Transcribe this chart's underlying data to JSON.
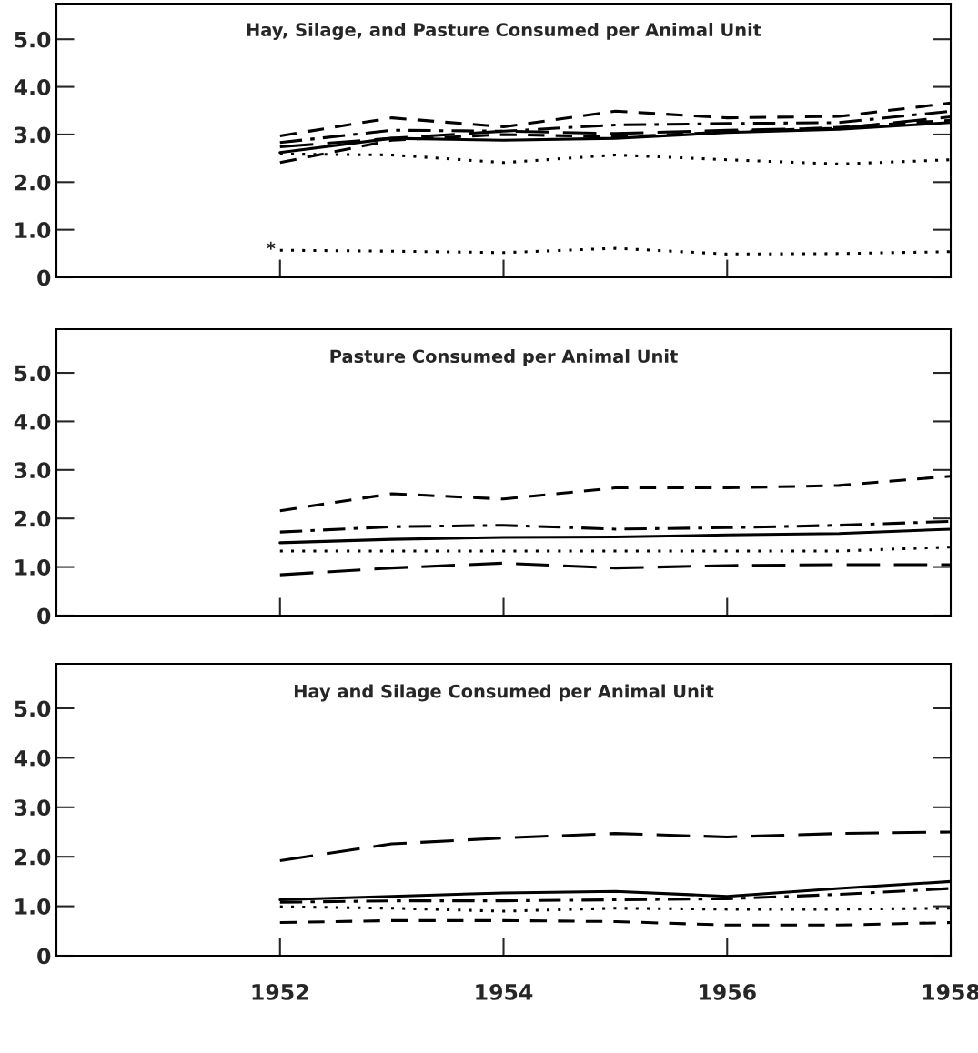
{
  "chart_data": [
    {
      "type": "line",
      "title": "Hay, Silage, and Pasture Consumed per Animal Unit",
      "x": [
        1952,
        1953,
        1954,
        1955,
        1956,
        1957,
        1958
      ],
      "xlim": [
        1950,
        1958
      ],
      "xticks": [
        {
          "value": 1952,
          "label": null
        },
        {
          "value": 1954,
          "label": null
        },
        {
          "value": 1956,
          "label": null
        }
      ],
      "ylim": [
        0,
        5.75
      ],
      "yticks": [
        0,
        {
          "value": 1,
          "label": "1.0"
        },
        {
          "value": 2,
          "label": "2.0"
        },
        {
          "value": 3,
          "label": "3.0"
        },
        {
          "value": 4,
          "label": "4.0"
        },
        {
          "value": 5,
          "label": "5.0"
        }
      ],
      "tick_labels": "y",
      "grid": false,
      "legend": false,
      "annotations": [
        "*"
      ],
      "series": [
        {
          "color": "#000000",
          "line_style": "dashed",
          "values": [
            2.97,
            3.35,
            3.16,
            3.49,
            3.35,
            3.38,
            3.66
          ]
        },
        {
          "color": "#000000",
          "line_style": "dashdot",
          "values": [
            2.83,
            3.09,
            3.07,
            3.2,
            3.23,
            3.25,
            3.49
          ]
        },
        {
          "color": "#000000",
          "line_style": "longdash",
          "values": [
            2.74,
            2.92,
            3.07,
            3.02,
            3.09,
            3.13,
            3.37
          ]
        },
        {
          "color": "#000000",
          "line_style": "solid",
          "values": [
            2.62,
            2.92,
            2.88,
            2.92,
            3.04,
            3.11,
            3.25
          ]
        },
        {
          "color": "#000000",
          "line_style": "dashed",
          "values": [
            2.41,
            2.88,
            3.0,
            2.95,
            3.05,
            3.15,
            3.3
          ]
        },
        {
          "color": "#000000",
          "line_style": "dotted",
          "values": [
            2.59,
            2.57,
            2.41,
            2.57,
            2.47,
            2.38,
            2.47
          ]
        },
        {
          "color": "#000000",
          "line_style": "dotted",
          "values": [
            0.57,
            0.55,
            0.52,
            0.61,
            0.49,
            0.5,
            0.54
          ]
        }
      ]
    },
    {
      "type": "line",
      "title": "Pasture Consumed per Animal Unit",
      "x": [
        1952,
        1953,
        1954,
        1955,
        1956,
        1957,
        1958
      ],
      "xlim": [
        1950,
        1958
      ],
      "xticks": [
        {
          "value": 1952,
          "label": null
        },
        {
          "value": 1954,
          "label": null
        },
        {
          "value": 1956,
          "label": null
        }
      ],
      "ylim": [
        0,
        5.9
      ],
      "yticks": [
        0,
        {
          "value": 1,
          "label": "1.0"
        },
        {
          "value": 2,
          "label": "2.0"
        },
        {
          "value": 3,
          "label": "3.0"
        },
        {
          "value": 4,
          "label": "4.0"
        },
        {
          "value": 5,
          "label": "5.0"
        }
      ],
      "tick_labels": "y",
      "grid": false,
      "legend": false,
      "series": [
        {
          "color": "#000000",
          "line_style": "dashed",
          "values": [
            2.16,
            2.51,
            2.4,
            2.63,
            2.63,
            2.68,
            2.87
          ]
        },
        {
          "color": "#000000",
          "line_style": "dashdot",
          "values": [
            1.72,
            1.83,
            1.86,
            1.78,
            1.81,
            1.86,
            1.94
          ]
        },
        {
          "color": "#000000",
          "line_style": "solid",
          "values": [
            1.5,
            1.57,
            1.61,
            1.62,
            1.66,
            1.69,
            1.78
          ]
        },
        {
          "color": "#000000",
          "line_style": "dotted",
          "values": [
            1.33,
            1.33,
            1.33,
            1.33,
            1.33,
            1.33,
            1.41
          ]
        },
        {
          "color": "#000000",
          "line_style": "longdash",
          "values": [
            0.84,
            0.98,
            1.08,
            0.98,
            1.03,
            1.05,
            1.05
          ]
        }
      ]
    },
    {
      "type": "line",
      "title": "Hay and Silage Consumed per Animal Unit",
      "x": [
        1952,
        1953,
        1954,
        1955,
        1956,
        1957,
        1958
      ],
      "xlim": [
        1950,
        1958
      ],
      "xticks": [
        1952,
        1954,
        1956,
        1958
      ],
      "ylim": [
        0,
        5.9
      ],
      "yticks": [
        0,
        {
          "value": 1,
          "label": "1.0"
        },
        {
          "value": 2,
          "label": "2.0"
        },
        {
          "value": 3,
          "label": "3.0"
        },
        {
          "value": 4,
          "label": "4.0"
        },
        {
          "value": 5,
          "label": "5.0"
        }
      ],
      "grid": false,
      "legend": false,
      "series": [
        {
          "color": "#000000",
          "line_style": "longdash",
          "values": [
            1.92,
            2.26,
            2.38,
            2.47,
            2.4,
            2.47,
            2.5
          ]
        },
        {
          "color": "#000000",
          "line_style": "solid",
          "values": [
            1.13,
            1.2,
            1.27,
            1.3,
            1.2,
            1.36,
            1.5
          ]
        },
        {
          "color": "#000000",
          "line_style": "dashdot",
          "values": [
            1.08,
            1.11,
            1.11,
            1.13,
            1.15,
            1.24,
            1.36
          ]
        },
        {
          "color": "#000000",
          "line_style": "dotted",
          "values": [
            0.99,
            0.96,
            0.9,
            0.96,
            0.94,
            0.94,
            0.96
          ]
        },
        {
          "color": "#000000",
          "line_style": "dashed",
          "values": [
            0.67,
            0.71,
            0.71,
            0.69,
            0.62,
            0.62,
            0.67
          ]
        }
      ]
    }
  ]
}
